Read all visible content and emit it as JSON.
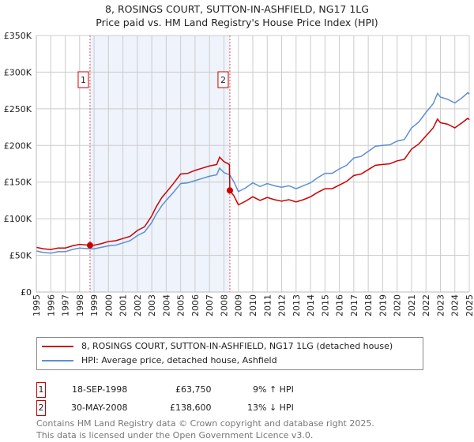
{
  "header": {
    "title": "8, ROSINGS COURT, SUTTON-IN-ASHFIELD, NG17 1LG",
    "subtitle": "Price paid vs. HM Land Registry's House Price Index (HPI)"
  },
  "legend": {
    "items": [
      {
        "label": "8, ROSINGS COURT, SUTTON-IN-ASHFIELD, NG17 1LG (detached house)",
        "color": "#cc0000"
      },
      {
        "label": "HPI: Average price, detached house, Ashfield",
        "color": "#5b8fd4"
      }
    ]
  },
  "sales": [
    {
      "num": "1",
      "date": "18-SEP-1998",
      "price": "£63,750",
      "hpi": "9% ↑ HPI"
    },
    {
      "num": "2",
      "date": "30-MAY-2008",
      "price": "£138,600",
      "hpi": "13% ↓ HPI"
    }
  ],
  "footer": {
    "line1": "Contains HM Land Registry data © Crown copyright and database right 2025.",
    "line2": "This data is licensed under the Open Government Licence v3.0."
  },
  "chart_data": {
    "type": "line",
    "title": "8, ROSINGS COURT, SUTTON-IN-ASHFIELD, NG17 1LG",
    "xlim": [
      1995,
      2025
    ],
    "ylim": [
      0,
      350000
    ],
    "yticks": [
      {
        "v": 0,
        "l": "£0"
      },
      {
        "v": 50000,
        "l": "£50K"
      },
      {
        "v": 100000,
        "l": "£100K"
      },
      {
        "v": 150000,
        "l": "£150K"
      },
      {
        "v": 200000,
        "l": "£200K"
      },
      {
        "v": 250000,
        "l": "£250K"
      },
      {
        "v": 300000,
        "l": "£300K"
      },
      {
        "v": 350000,
        "l": "£350K"
      }
    ],
    "xticks": [
      "1995",
      "1996",
      "1997",
      "1998",
      "1999",
      "2000",
      "2001",
      "2002",
      "2003",
      "2004",
      "2005",
      "2006",
      "2007",
      "2008",
      "2009",
      "2010",
      "2011",
      "2012",
      "2013",
      "2014",
      "2015",
      "2016",
      "2017",
      "2018",
      "2019",
      "2020",
      "2021",
      "2022",
      "2023",
      "2024",
      "2025"
    ],
    "grid": true,
    "shaded_range": [
      1998.72,
      2008.41
    ],
    "sale_markers": [
      {
        "label": "1",
        "x": 1998.72,
        "y": 63750
      },
      {
        "label": "2",
        "x": 2008.41,
        "y": 138600
      }
    ],
    "series": [
      {
        "name": "HPI",
        "color": "#5b8fd4",
        "x": [
          1995,
          1995.5,
          1996,
          1996.5,
          1997,
          1997.5,
          1998,
          1998.7,
          1999,
          1999.5,
          2000,
          2000.5,
          2001,
          2001.5,
          2002,
          2002.5,
          2003,
          2003.3,
          2003.7,
          2004,
          2004.5,
          2005,
          2005.5,
          2006,
          2006.5,
          2007,
          2007.5,
          2007.7,
          2008,
          2008.4,
          2008.7,
          2009,
          2009.5,
          2010,
          2010.5,
          2011,
          2011.5,
          2012,
          2012.5,
          2013,
          2013.5,
          2014,
          2014.5,
          2015,
          2015.5,
          2016,
          2016.5,
          2017,
          2017.5,
          2018,
          2018.5,
          2019,
          2019.5,
          2020,
          2020.5,
          2021,
          2021.5,
          2022,
          2022.5,
          2022.8,
          2023,
          2023.5,
          2024,
          2024.5,
          2024.9,
          2025
        ],
        "y": [
          56,
          54,
          53,
          55,
          55,
          58,
          60,
          59,
          59,
          61,
          63,
          64,
          67,
          70,
          77,
          82,
          95,
          106,
          118,
          125,
          136,
          148,
          149,
          152,
          155,
          158,
          160,
          169,
          163,
          160,
          150,
          137,
          142,
          149,
          144,
          148,
          145,
          143,
          145,
          141,
          145,
          149,
          156,
          162,
          162,
          168,
          173,
          183,
          185,
          192,
          199,
          200,
          201,
          206,
          208,
          224,
          232,
          245,
          257,
          271,
          266,
          263,
          258,
          265,
          272,
          270
        ]
      },
      {
        "name": "Price paid",
        "color": "#cc0000",
        "x": [
          1995,
          1995.5,
          1996,
          1996.5,
          1997,
          1997.5,
          1998,
          1998.72,
          1999,
          1999.5,
          2000,
          2000.5,
          2001,
          2001.5,
          2002,
          2002.5,
          2003,
          2003.3,
          2003.7,
          2004,
          2004.5,
          2005,
          2005.5,
          2006,
          2006.5,
          2007,
          2007.5,
          2007.7,
          2008,
          2008.38,
          2008.41,
          2008.7,
          2009,
          2009.5,
          2010,
          2010.5,
          2011,
          2011.5,
          2012,
          2012.5,
          2013,
          2013.5,
          2014,
          2014.5,
          2015,
          2015.5,
          2016,
          2016.5,
          2017,
          2017.5,
          2018,
          2018.5,
          2019,
          2019.5,
          2020,
          2020.5,
          2021,
          2021.5,
          2022,
          2022.5,
          2022.8,
          2023,
          2023.5,
          2024,
          2024.5,
          2024.9,
          2025
        ],
        "y": [
          61,
          59,
          58,
          60,
          60,
          63,
          65,
          63.75,
          64,
          66,
          69,
          70,
          73,
          76,
          84,
          89,
          104,
          116,
          129,
          136,
          148,
          161,
          162,
          166,
          169,
          172,
          174,
          184,
          178,
          174,
          138.6,
          131,
          119,
          124,
          130,
          125,
          129,
          126,
          124,
          126,
          123,
          126,
          130,
          136,
          141,
          141,
          146,
          151,
          159,
          161,
          167,
          173,
          174,
          175,
          179,
          181,
          195,
          202,
          213,
          224,
          236,
          231,
          229,
          224,
          231,
          237,
          235
        ]
      }
    ]
  }
}
